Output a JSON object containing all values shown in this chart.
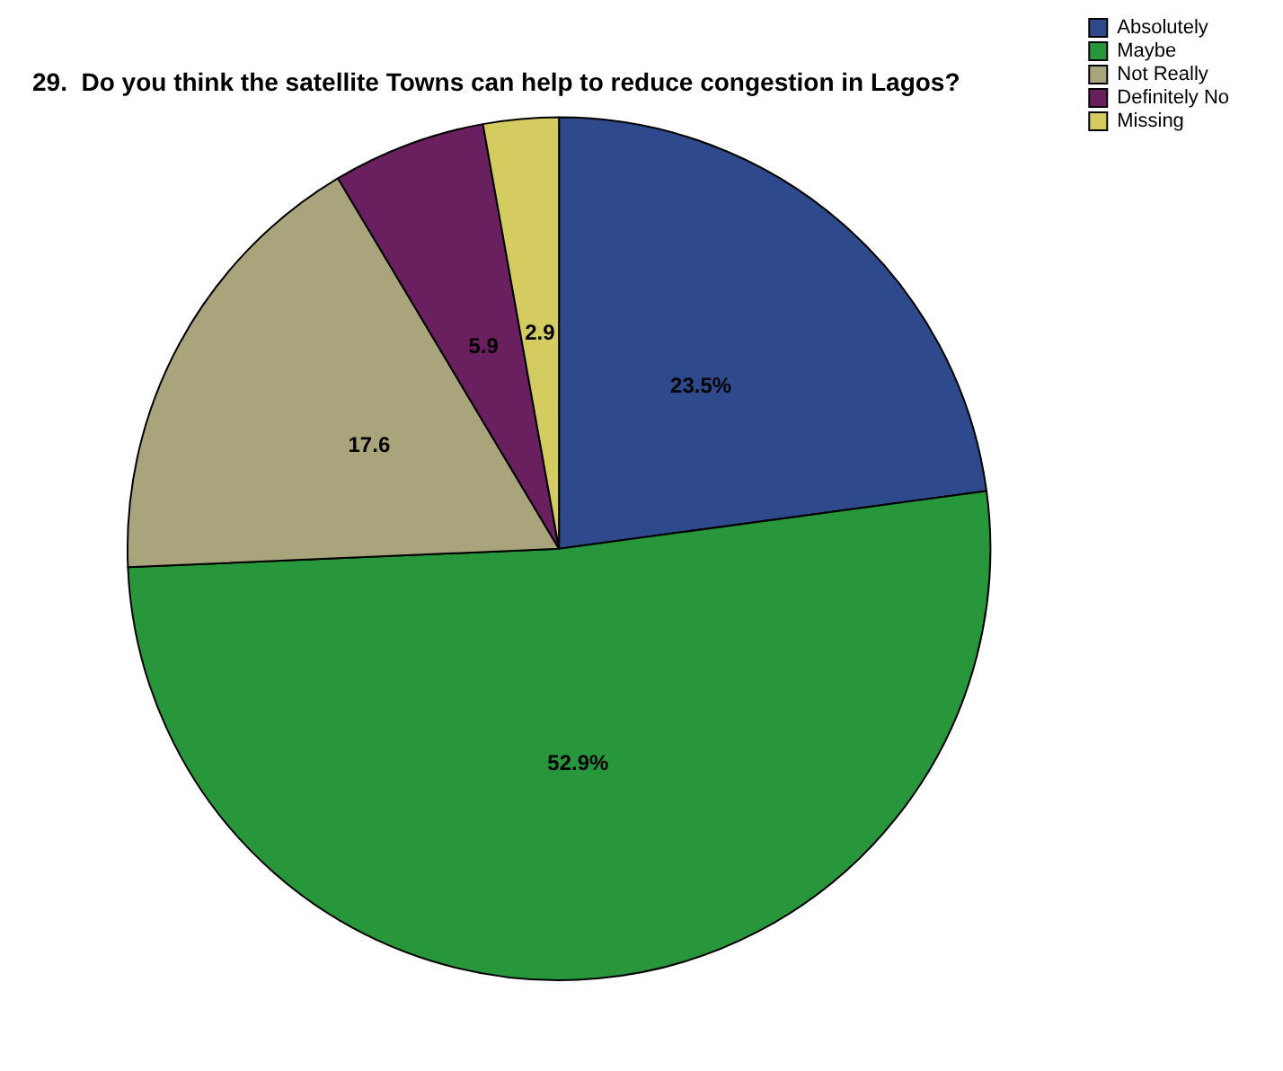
{
  "chart_data": {
    "type": "pie",
    "title": "29.  Do you think the satellite Towns can help to reduce congestion in Lagos?",
    "categories": [
      "Absolutely",
      "Maybe",
      "Not Really",
      "Definitely No",
      "Missing"
    ],
    "values": [
      23.5,
      52.9,
      17.6,
      5.9,
      2.9
    ],
    "value_labels": [
      "23.5%",
      "52.9%",
      "17.6",
      "5.9",
      "2.9"
    ],
    "colors": [
      "#2e4a8c",
      "#28963a",
      "#aaa47c",
      "#6a1f5e",
      "#d4cc60"
    ],
    "legend": "top right"
  }
}
